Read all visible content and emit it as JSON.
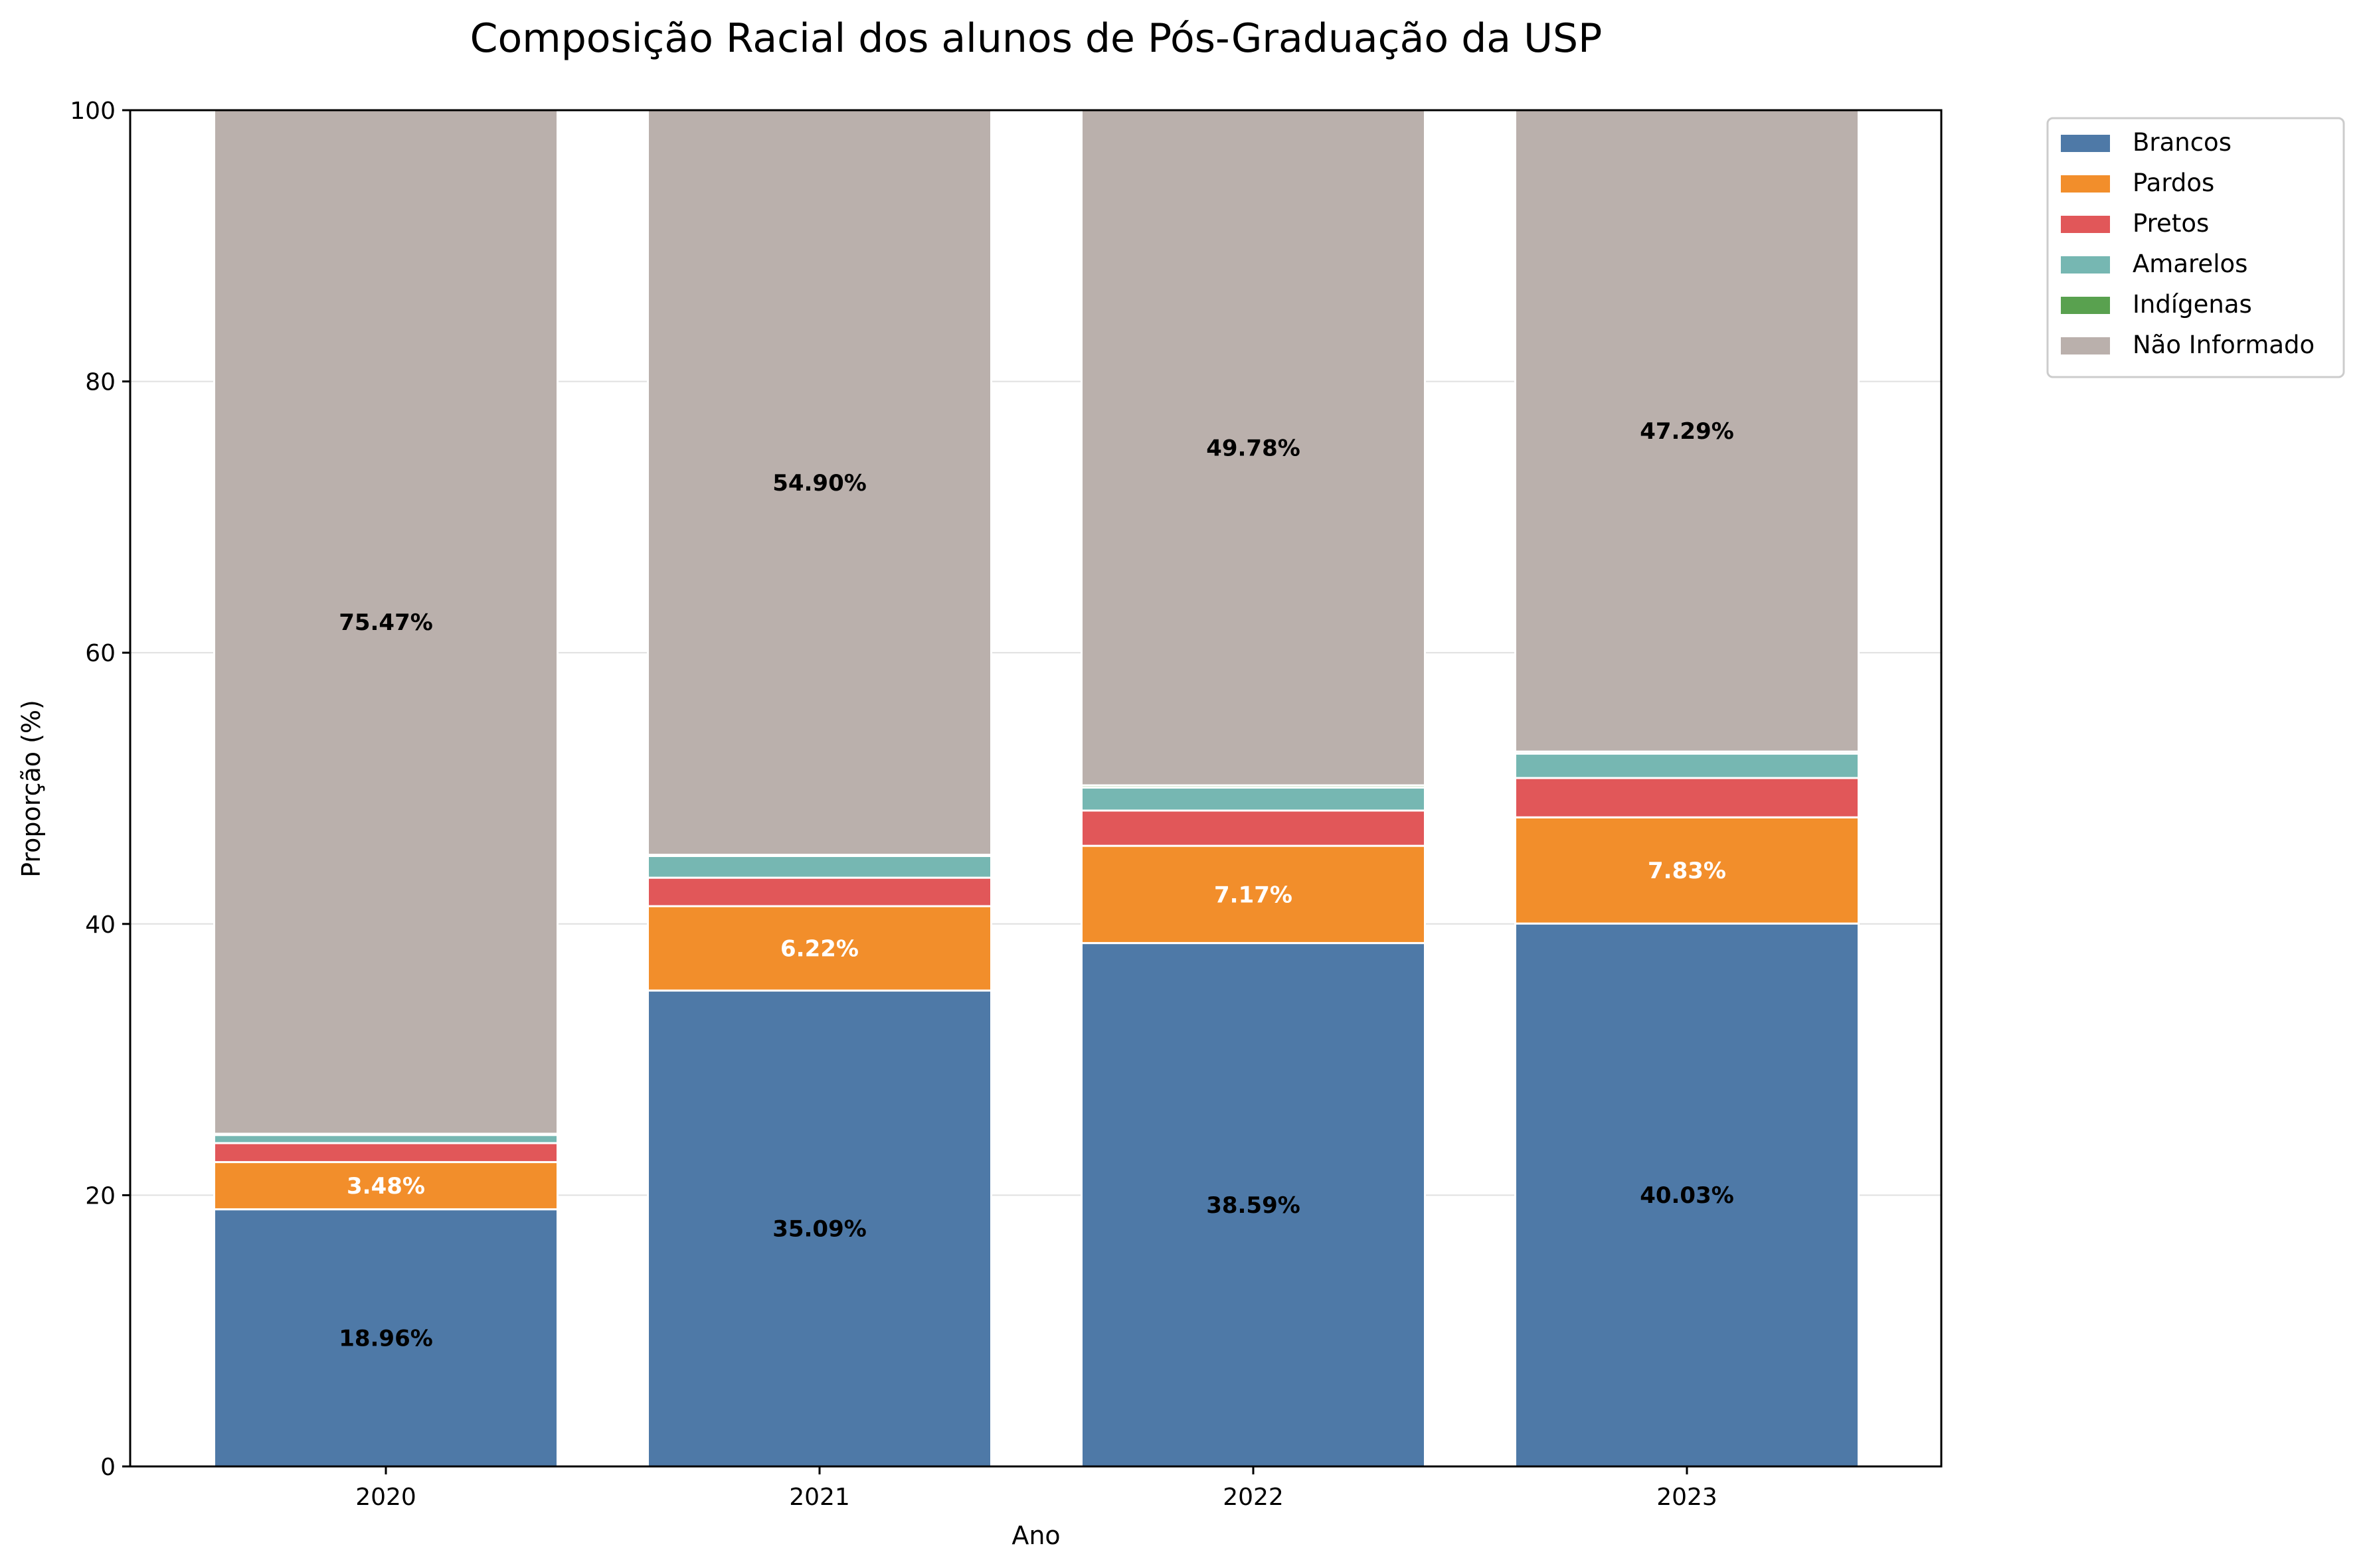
{
  "chart_data": {
    "type": "bar",
    "stacked": true,
    "title": "Composição Racial dos alunos de Pós-Graduação da USP",
    "xlabel": "Ano",
    "ylabel": "Proporção (%)",
    "ylim": [
      0,
      100
    ],
    "yticks": [
      0,
      20,
      40,
      60,
      80,
      100
    ],
    "grid": "horizontal",
    "legend_position": "outside-top-right",
    "categories": [
      "2020",
      "2021",
      "2022",
      "2023"
    ],
    "series": [
      {
        "name": "Brancos",
        "color": "#4e79a7",
        "label_color": "#000000",
        "values": [
          18.96,
          35.09,
          38.59,
          40.03
        ],
        "labels": [
          "18.96%",
          "35.09%",
          "38.59%",
          "40.03%"
        ]
      },
      {
        "name": "Pardos",
        "color": "#f28e2b",
        "label_color": "#ffffff",
        "values": [
          3.48,
          6.22,
          7.17,
          7.83
        ],
        "labels": [
          "3.48%",
          "6.22%",
          "7.17%",
          "7.83%"
        ]
      },
      {
        "name": "Pretos",
        "color": "#e15759",
        "label_color": "#ffffff",
        "values": [
          1.4,
          2.1,
          2.6,
          2.9
        ],
        "labels": [
          "",
          "",
          "",
          ""
        ]
      },
      {
        "name": "Amarelos",
        "color": "#76b7b2",
        "label_color": "#000000",
        "values": [
          0.6,
          1.6,
          1.7,
          1.8
        ],
        "labels": [
          "",
          "",
          "",
          ""
        ]
      },
      {
        "name": "Indígenas",
        "color": "#59a14f",
        "label_color": "#000000",
        "values": [
          0.09,
          0.09,
          0.16,
          0.15
        ],
        "labels": [
          "",
          "",
          "",
          ""
        ]
      },
      {
        "name": "Não Informado",
        "color": "#bab0ac",
        "label_color": "#000000",
        "values": [
          75.47,
          54.9,
          49.78,
          47.29
        ],
        "labels": [
          "75.47%",
          "54.90%",
          "49.78%",
          "47.29%"
        ]
      }
    ]
  }
}
